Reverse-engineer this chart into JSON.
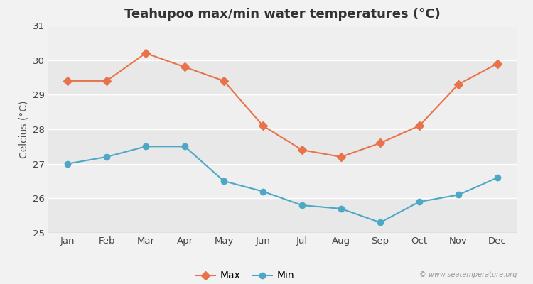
{
  "title": "Teahupoo max/min water temperatures (°C)",
  "ylabel": "Celcius (°C)",
  "months": [
    "Jan",
    "Feb",
    "Mar",
    "Apr",
    "May",
    "Jun",
    "Jul",
    "Aug",
    "Sep",
    "Oct",
    "Nov",
    "Dec"
  ],
  "max_temps": [
    29.4,
    29.4,
    30.2,
    29.8,
    29.4,
    28.1,
    27.4,
    27.2,
    27.6,
    28.1,
    29.3,
    29.9
  ],
  "min_temps": [
    27.0,
    27.2,
    27.5,
    27.5,
    26.5,
    26.2,
    25.8,
    25.7,
    25.3,
    25.9,
    26.1,
    26.6
  ],
  "max_color": "#e8724a",
  "min_color": "#4da8c7",
  "fig_bg_color": "#f2f2f2",
  "plot_bg_color": "#ebebeb",
  "grid_color": "#ffffff",
  "band_colors": [
    "#e8e8e8",
    "#efefef"
  ],
  "ylim": [
    25,
    31
  ],
  "yticks": [
    25,
    26,
    27,
    28,
    29,
    30,
    31
  ],
  "watermark": "© www.seatemperature.org",
  "legend_max": "Max",
  "legend_min": "Min",
  "title_fontsize": 13,
  "label_fontsize": 10,
  "tick_fontsize": 9.5
}
